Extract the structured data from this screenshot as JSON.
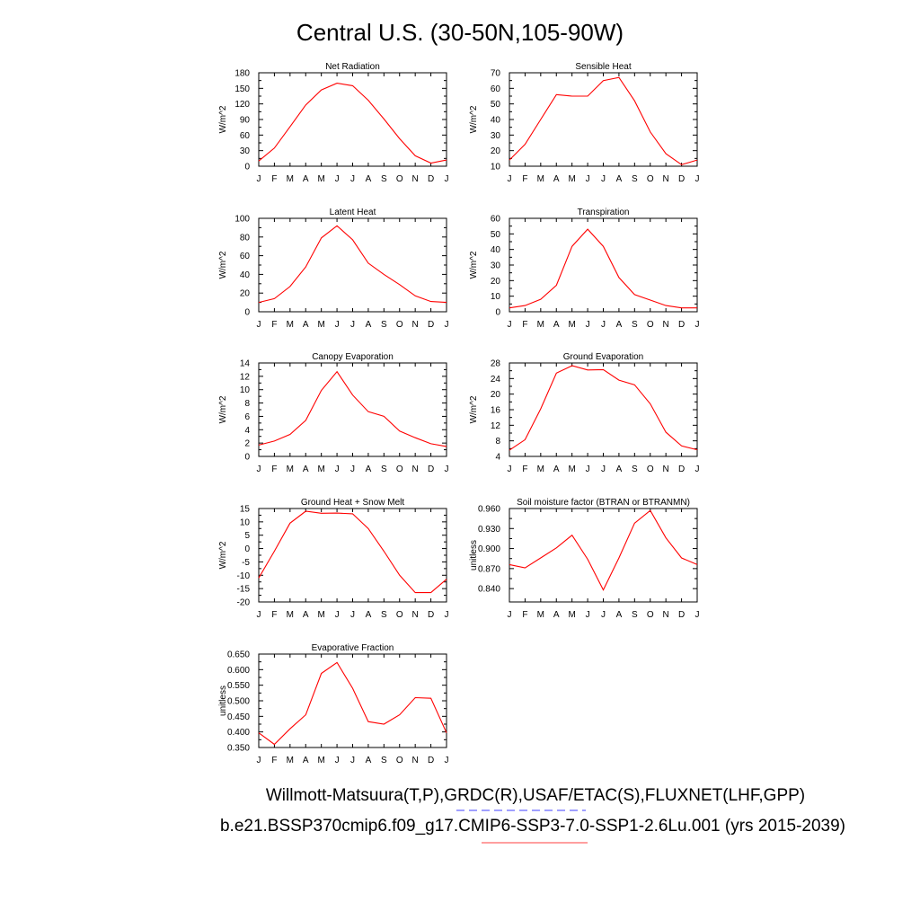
{
  "title": "Central U.S. (30-50N,105-90W)",
  "footer": {
    "line1": "Willmott-Matsuura(T,P),GRDC(R),USAF/ETAC(S),FLUXNET(LHF,GPP)",
    "line2": "b.e21.BSSP370cmip6.f09_g17.CMIP6-SSP3-7.0-SSP1-2.6Lu.001 (yrs 2015-2039)",
    "line1_underline_color": "#6666ff",
    "line2_underline_color": "#ff6666"
  },
  "colors": {
    "series": "#ff0000",
    "axes": "#000000"
  },
  "chart_data": [
    {
      "type": "line",
      "title": "Net Radiation",
      "ylabel": "W/m^2",
      "categories": [
        "J",
        "F",
        "M",
        "A",
        "M",
        "J",
        "J",
        "A",
        "S",
        "O",
        "N",
        "D",
        "J"
      ],
      "values": [
        10,
        35,
        76,
        118,
        147,
        160,
        155,
        127,
        91,
        53,
        20,
        6,
        12
      ],
      "ylim": [
        0,
        180
      ],
      "yticks": [
        "0",
        "30",
        "60",
        "90",
        "120",
        "150",
        "180"
      ]
    },
    {
      "type": "line",
      "title": "Sensible Heat",
      "ylabel": "W/m^2",
      "categories": [
        "J",
        "F",
        "M",
        "A",
        "M",
        "J",
        "J",
        "A",
        "S",
        "O",
        "N",
        "D",
        "J"
      ],
      "values": [
        14,
        24,
        40,
        56,
        55,
        55,
        65,
        67,
        52,
        32,
        18,
        11,
        14
      ],
      "ylim": [
        10,
        70
      ],
      "yticks": [
        "10",
        "20",
        "30",
        "40",
        "50",
        "60",
        "70"
      ]
    },
    {
      "type": "line",
      "title": "Latent Heat",
      "ylabel": "W/m^2",
      "categories": [
        "J",
        "F",
        "M",
        "A",
        "M",
        "J",
        "J",
        "A",
        "S",
        "O",
        "N",
        "D",
        "J"
      ],
      "values": [
        10,
        14,
        27,
        48,
        79,
        92,
        77,
        52,
        40,
        29,
        17,
        11,
        10
      ],
      "ylim": [
        0,
        100
      ],
      "yticks": [
        "0",
        "20",
        "40",
        "60",
        "80",
        "100"
      ]
    },
    {
      "type": "line",
      "title": "Transpiration",
      "ylabel": "W/m^2",
      "categories": [
        "J",
        "F",
        "M",
        "A",
        "M",
        "J",
        "J",
        "A",
        "S",
        "O",
        "N",
        "D",
        "J"
      ],
      "values": [
        2.5,
        4,
        8,
        17,
        42,
        53,
        42,
        22,
        11,
        7.5,
        4,
        2.5,
        2.5
      ],
      "ylim": [
        0,
        60
      ],
      "yticks": [
        "0",
        "10",
        "20",
        "30",
        "40",
        "50",
        "60"
      ]
    },
    {
      "type": "line",
      "title": "Canopy Evaporation",
      "ylabel": "W/m^2",
      "categories": [
        "J",
        "F",
        "M",
        "A",
        "M",
        "J",
        "J",
        "A",
        "S",
        "O",
        "N",
        "D",
        "J"
      ],
      "values": [
        1.7,
        2.3,
        3.3,
        5.4,
        9.9,
        12.7,
        9.2,
        6.7,
        6.0,
        3.8,
        2.8,
        1.9,
        1.5
      ],
      "ylim": [
        0,
        14
      ],
      "yticks": [
        "0",
        "2",
        "4",
        "6",
        "8",
        "10",
        "12",
        "14"
      ]
    },
    {
      "type": "line",
      "title": "Ground Evaporation",
      "ylabel": "W/m^2",
      "categories": [
        "J",
        "F",
        "M",
        "A",
        "M",
        "J",
        "J",
        "A",
        "S",
        "O",
        "N",
        "D",
        "J"
      ],
      "values": [
        5.6,
        8.3,
        16.2,
        25.4,
        27.3,
        26.2,
        26.3,
        23.6,
        22.4,
        17.5,
        10.2,
        6.7,
        5.7
      ],
      "ylim": [
        4,
        28
      ],
      "yticks": [
        "4",
        "8",
        "12",
        "16",
        "20",
        "24",
        "28"
      ]
    },
    {
      "type": "line",
      "title": "Ground Heat + Snow Melt",
      "ylabel": "W/m^2",
      "categories": [
        "J",
        "F",
        "M",
        "A",
        "M",
        "J",
        "J",
        "A",
        "S",
        "O",
        "N",
        "D",
        "J"
      ],
      "values": [
        -11,
        -1,
        9.5,
        14,
        13.2,
        13.3,
        13,
        7.5,
        -1,
        -10,
        -16.5,
        -16.5,
        -11.5
      ],
      "ylim": [
        -20,
        15
      ],
      "yticks": [
        "-20",
        "-15",
        "-10",
        "-5",
        "0",
        "5",
        "10",
        "15"
      ]
    },
    {
      "type": "line",
      "title": "Soil moisture factor (BTRAN or BTRANMN)",
      "ylabel": "unitless",
      "categories": [
        "J",
        "F",
        "M",
        "A",
        "M",
        "J",
        "J",
        "A",
        "S",
        "O",
        "N",
        "D",
        "J"
      ],
      "values": [
        0.876,
        0.871,
        0.886,
        0.901,
        0.92,
        0.884,
        0.838,
        0.886,
        0.938,
        0.957,
        0.916,
        0.886,
        0.876
      ],
      "ylim": [
        0.82,
        0.96
      ],
      "yticks": [
        "0.840",
        "0.870",
        "0.900",
        "0.930",
        "0.960"
      ],
      "ytickvals": [
        0.84,
        0.87,
        0.9,
        0.93,
        0.96
      ]
    },
    {
      "type": "line",
      "title": "Evaporative Fraction",
      "ylabel": "unitless",
      "categories": [
        "J",
        "F",
        "M",
        "A",
        "M",
        "J",
        "J",
        "A",
        "S",
        "O",
        "N",
        "D",
        "J"
      ],
      "values": [
        0.397,
        0.36,
        0.41,
        0.455,
        0.588,
        0.623,
        0.54,
        0.433,
        0.425,
        0.455,
        0.51,
        0.508,
        0.397
      ],
      "ylim": [
        0.35,
        0.65
      ],
      "yticks": [
        "0.350",
        "0.400",
        "0.450",
        "0.500",
        "0.550",
        "0.600",
        "0.650"
      ]
    }
  ]
}
